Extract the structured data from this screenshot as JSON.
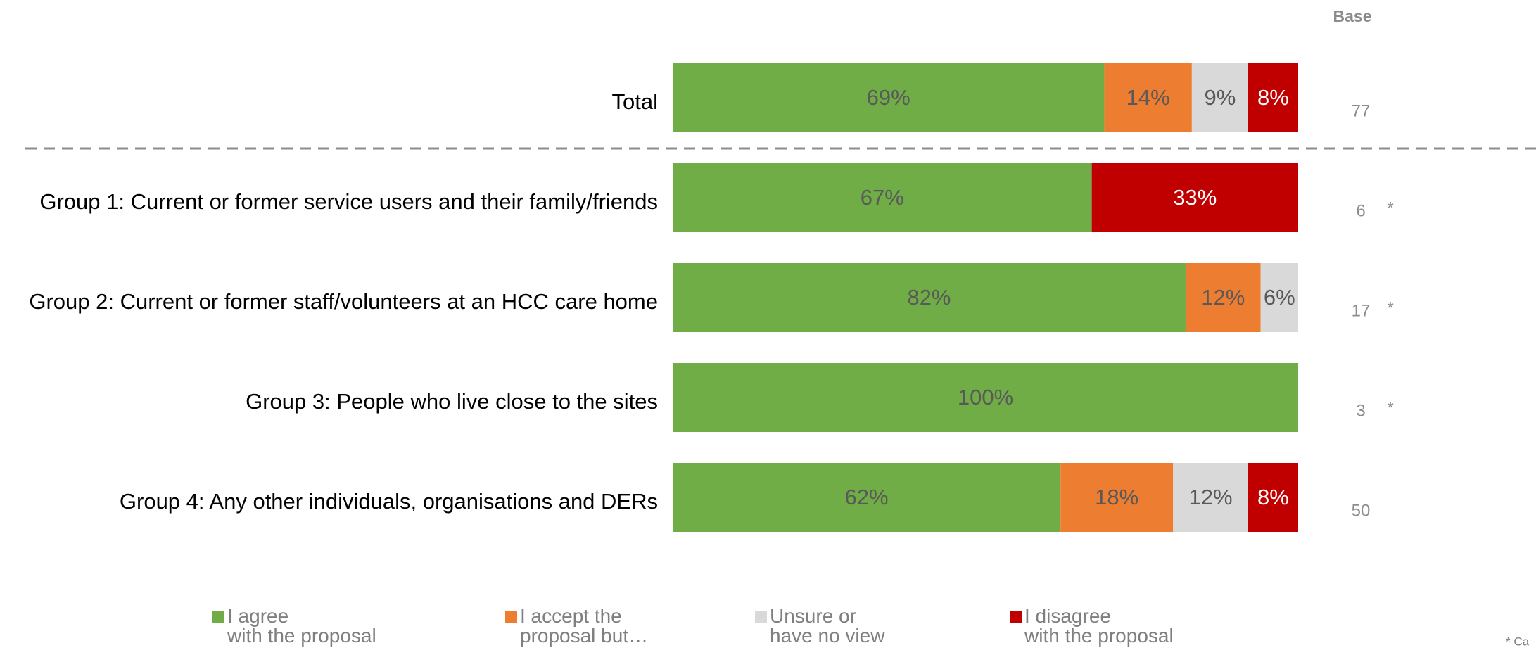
{
  "chart_data": {
    "type": "stacked-bar-horizontal",
    "categories": [
      "Total",
      "Group 1: Current or former service users and their family/friends",
      "Group 2: Current or former staff/volunteers at an HCC care home",
      "Group 3: People who live close to the sites",
      "Group 4: Any other individuals, organisations and DERs"
    ],
    "xlim": [
      0,
      100
    ],
    "series": [
      {
        "name": "I agree\nwith the proposal",
        "color": "#70ad47",
        "values": [
          69,
          67,
          82,
          100,
          62
        ],
        "value_labels": [
          "69%",
          "67%",
          "82%",
          "100%",
          "62%"
        ]
      },
      {
        "name": "I accept the\nproposal but…",
        "color": "#ed7d31",
        "values": [
          14,
          null,
          12,
          null,
          18
        ],
        "value_labels": [
          "14%",
          null,
          "12%",
          null,
          "18%"
        ]
      },
      {
        "name": "Unsure or\nhave no view",
        "color": "#d9d9d9",
        "values": [
          9,
          null,
          6,
          null,
          12
        ],
        "value_labels": [
          "9%",
          null,
          "6%",
          null,
          "12%"
        ]
      },
      {
        "name": "I disagree\nwith the proposal",
        "color": "#c00000",
        "values": [
          8,
          33,
          null,
          null,
          8
        ],
        "value_labels": [
          "8%",
          "33%",
          null,
          null,
          "8%"
        ]
      }
    ],
    "base_title": "Base",
    "base": [
      77,
      6,
      17,
      3,
      50
    ],
    "base_notes": [
      null,
      "*",
      "*",
      "*",
      null
    ],
    "footnote": "* Ca"
  }
}
